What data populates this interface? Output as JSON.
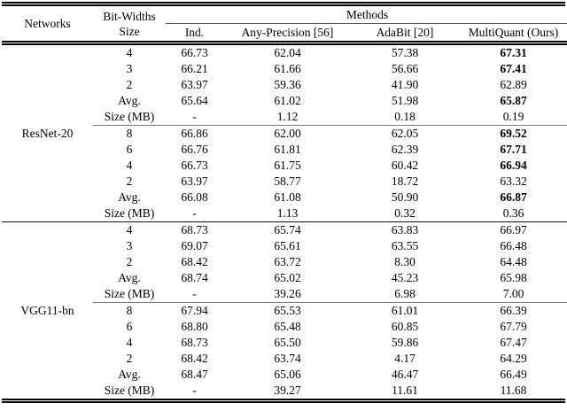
{
  "table": {
    "header": {
      "networks": "Networks",
      "bitwidths_line1": "Bit-Widths",
      "bitwidths_line2": "Size",
      "methods": "Methods",
      "method_columns": [
        "Ind.",
        "Any-Precision [56]",
        "AdaBit [20]",
        "MultiQuant (Ours)"
      ]
    },
    "sections": [
      {
        "network": "ResNet-20",
        "blocks": [
          {
            "rows": [
              {
                "label": "4",
                "values": [
                  "66.73",
                  "62.04",
                  "57.38",
                  "67.31"
                ],
                "bold": true
              },
              {
                "label": "3",
                "values": [
                  "66.21",
                  "61.66",
                  "56.66",
                  "67.41"
                ],
                "bold": true
              },
              {
                "label": "2",
                "values": [
                  "63.97",
                  "59.36",
                  "41.90",
                  "62.89"
                ],
                "bold": false
              },
              {
                "label": "Avg.",
                "values": [
                  "65.64",
                  "61.02",
                  "51.98",
                  "65.87"
                ],
                "bold": true
              },
              {
                "label": "Size (MB)",
                "values": [
                  "-",
                  "1.12",
                  "0.18",
                  "0.19"
                ],
                "bold": false
              }
            ]
          },
          {
            "rows": [
              {
                "label": "8",
                "values": [
                  "66.86",
                  "62.00",
                  "62.05",
                  "69.52"
                ],
                "bold": true
              },
              {
                "label": "6",
                "values": [
                  "66.76",
                  "61.81",
                  "62.39",
                  "67.71"
                ],
                "bold": true
              },
              {
                "label": "4",
                "values": [
                  "66.73",
                  "61.75",
                  "60.42",
                  "66.94"
                ],
                "bold": true
              },
              {
                "label": "2",
                "values": [
                  "63.97",
                  "58.77",
                  "18.72",
                  "63.32"
                ],
                "bold": false
              },
              {
                "label": "Avg.",
                "values": [
                  "66.08",
                  "61.08",
                  "50.90",
                  "66.87"
                ],
                "bold": true
              },
              {
                "label": "Size (MB)",
                "values": [
                  "-",
                  "1.13",
                  "0.32",
                  "0.36"
                ],
                "bold": false
              }
            ]
          }
        ]
      },
      {
        "network": "VGG11-bn",
        "blocks": [
          {
            "rows": [
              {
                "label": "4",
                "values": [
                  "68.73",
                  "65.74",
                  "63.83",
                  "66.97"
                ],
                "bold": false
              },
              {
                "label": "3",
                "values": [
                  "69.07",
                  "65.61",
                  "63.55",
                  "66.48"
                ],
                "bold": false
              },
              {
                "label": "2",
                "values": [
                  "68.42",
                  "63.72",
                  "8.30",
                  "64.48"
                ],
                "bold": false
              },
              {
                "label": "Avg.",
                "values": [
                  "68.74",
                  "65.02",
                  "45.23",
                  "65.98"
                ],
                "bold": false
              },
              {
                "label": "Size (MB)",
                "values": [
                  "-",
                  "39.26",
                  "6.98",
                  "7.00"
                ],
                "bold": false
              }
            ]
          },
          {
            "rows": [
              {
                "label": "8",
                "values": [
                  "67.94",
                  "65.53",
                  "61.01",
                  "66.39"
                ],
                "bold": false
              },
              {
                "label": "6",
                "values": [
                  "68.80",
                  "65.48",
                  "60.85",
                  "67.79"
                ],
                "bold": false
              },
              {
                "label": "4",
                "values": [
                  "68.73",
                  "65.50",
                  "59.86",
                  "67.47"
                ],
                "bold": false
              },
              {
                "label": "2",
                "values": [
                  "68.42",
                  "63.74",
                  "4.17",
                  "64.29"
                ],
                "bold": false
              },
              {
                "label": "Avg.",
                "values": [
                  "68.47",
                  "65.06",
                  "46.47",
                  "66.49"
                ],
                "bold": false
              },
              {
                "label": "Size (MB)",
                "values": [
                  "-",
                  "39.27",
                  "11.61",
                  "11.68"
                ],
                "bold": false
              }
            ]
          }
        ]
      }
    ]
  }
}
